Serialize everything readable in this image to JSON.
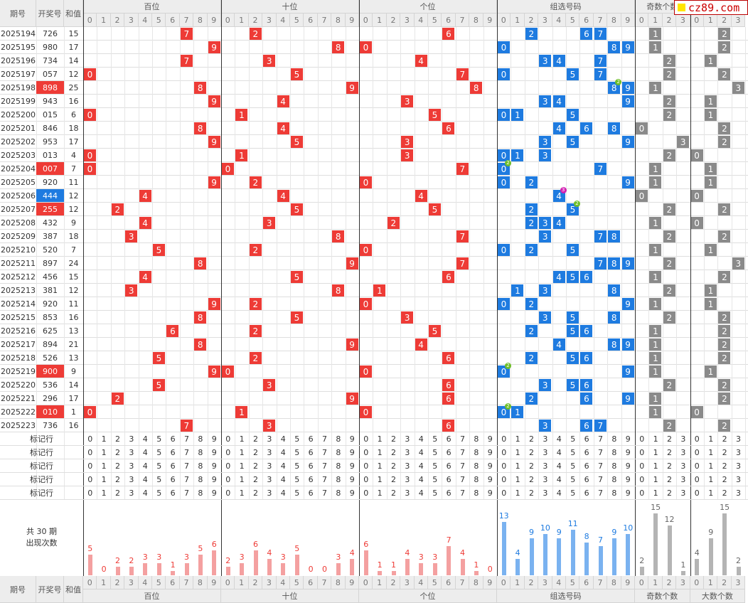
{
  "columns": {
    "issue": "期号",
    "number": "开奖号",
    "sum": "和值"
  },
  "groups": {
    "hundreds": "百位",
    "tens": "十位",
    "units": "个位",
    "combo": "组选号码",
    "odd_count": "奇数个数",
    "big_count": "大数个数"
  },
  "digits10": [
    "0",
    "1",
    "2",
    "3",
    "4",
    "5",
    "6",
    "7",
    "8",
    "9"
  ],
  "digits4": [
    "0",
    "1",
    "2",
    "3"
  ],
  "marker_label": "标记行",
  "marker_rows": 5,
  "summary_title": "共 30 期",
  "summary_sub": "出现次数",
  "logo_text": "cz89.com",
  "colors": {
    "red": "#ee3b36",
    "blue": "#1e7be0",
    "gray": "#8a8a8a",
    "pink_bar": "#f4a0a0",
    "blue_bar": "#7ab2f0",
    "gray_bar": "#b4b4b4"
  },
  "chart_data": {
    "type": "table",
    "rows": [
      {
        "issue": "2025194",
        "number": "726",
        "sum": "15"
      },
      {
        "issue": "2025195",
        "number": "980",
        "sum": "17"
      },
      {
        "issue": "2025196",
        "number": "734",
        "sum": "14"
      },
      {
        "issue": "2025197",
        "number": "057",
        "sum": "12"
      },
      {
        "issue": "2025198",
        "number": "898",
        "sum": "25",
        "tag": "red"
      },
      {
        "issue": "2025199",
        "number": "943",
        "sum": "16"
      },
      {
        "issue": "2025200",
        "number": "015",
        "sum": "6"
      },
      {
        "issue": "2025201",
        "number": "846",
        "sum": "18"
      },
      {
        "issue": "2025202",
        "number": "953",
        "sum": "17"
      },
      {
        "issue": "2025203",
        "number": "013",
        "sum": "4"
      },
      {
        "issue": "2025204",
        "number": "007",
        "sum": "7",
        "tag": "red"
      },
      {
        "issue": "2025205",
        "number": "920",
        "sum": "11"
      },
      {
        "issue": "2025206",
        "number": "444",
        "sum": "12",
        "tag": "blue"
      },
      {
        "issue": "2025207",
        "number": "255",
        "sum": "12",
        "tag": "red"
      },
      {
        "issue": "2025208",
        "number": "432",
        "sum": "9"
      },
      {
        "issue": "2025209",
        "number": "387",
        "sum": "18"
      },
      {
        "issue": "2025210",
        "number": "520",
        "sum": "7"
      },
      {
        "issue": "2025211",
        "number": "897",
        "sum": "24"
      },
      {
        "issue": "2025212",
        "number": "456",
        "sum": "15"
      },
      {
        "issue": "2025213",
        "number": "381",
        "sum": "12"
      },
      {
        "issue": "2025214",
        "number": "920",
        "sum": "11"
      },
      {
        "issue": "2025215",
        "number": "853",
        "sum": "16"
      },
      {
        "issue": "2025216",
        "number": "625",
        "sum": "13"
      },
      {
        "issue": "2025217",
        "number": "894",
        "sum": "21"
      },
      {
        "issue": "2025218",
        "number": "526",
        "sum": "13"
      },
      {
        "issue": "2025219",
        "number": "900",
        "sum": "9",
        "tag": "red"
      },
      {
        "issue": "2025220",
        "number": "536",
        "sum": "14"
      },
      {
        "issue": "2025221",
        "number": "296",
        "sum": "17"
      },
      {
        "issue": "2025222",
        "number": "010",
        "sum": "1",
        "tag": "red"
      },
      {
        "issue": "2025223",
        "number": "736",
        "sum": "16"
      }
    ],
    "counts": {
      "hundreds": [
        5,
        0,
        2,
        2,
        3,
        3,
        1,
        3,
        5,
        6
      ],
      "tens": [
        2,
        3,
        6,
        4,
        3,
        5,
        0,
        0,
        3,
        4
      ],
      "units": [
        6,
        1,
        1,
        4,
        3,
        3,
        7,
        4,
        1,
        0
      ],
      "combo": [
        13,
        4,
        9,
        10,
        9,
        11,
        8,
        7,
        9,
        10
      ],
      "odd_count": [
        2,
        15,
        12,
        1
      ],
      "big_count": [
        4,
        9,
        15,
        2
      ]
    }
  }
}
